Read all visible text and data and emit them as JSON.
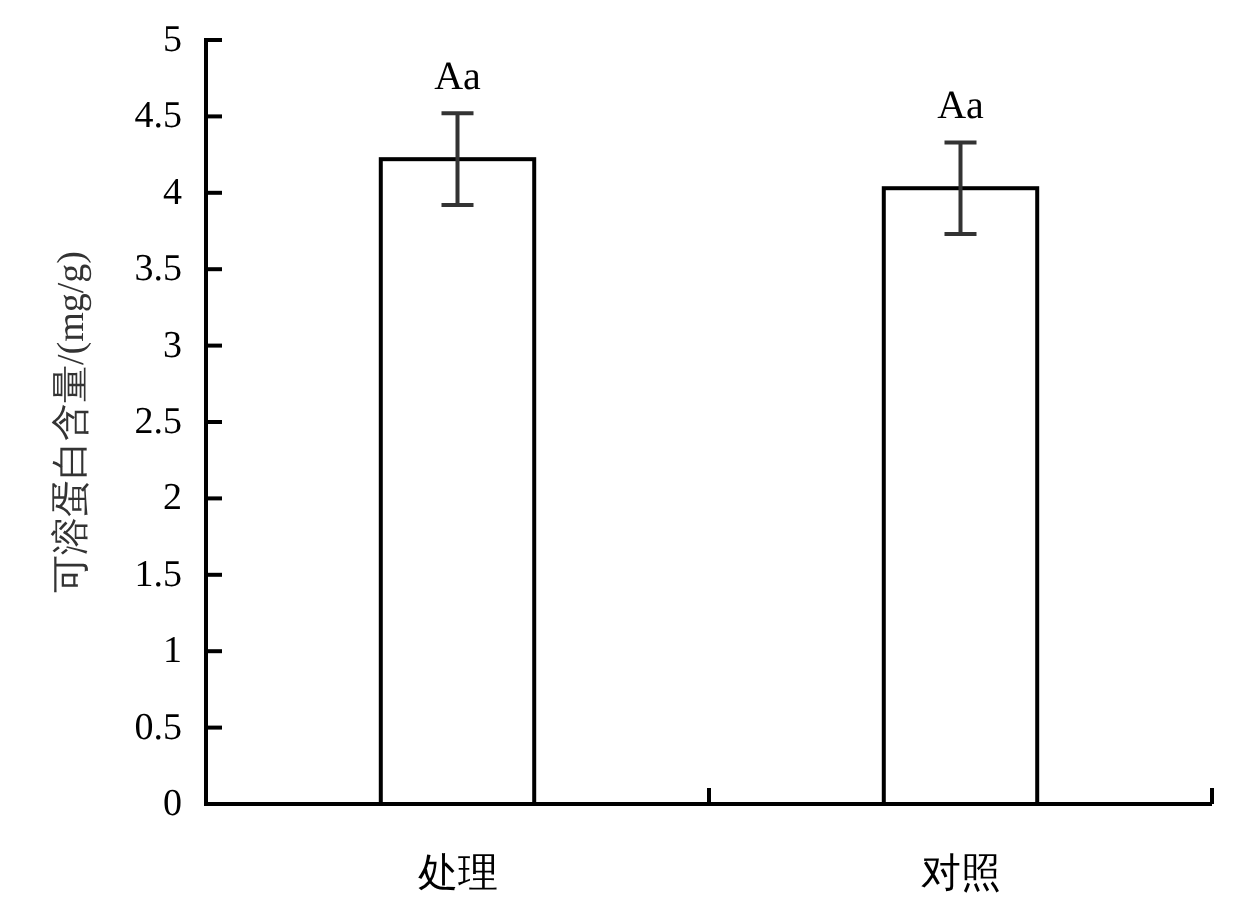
{
  "chart_data": {
    "type": "bar",
    "ylabel": "可溶蛋白含量/(mg/g)",
    "categories": [
      "处理",
      "对照"
    ],
    "values": [
      4.22,
      4.03
    ],
    "errors": [
      0.3,
      0.3
    ],
    "color": "#ffffff",
    "ylim": [
      0,
      5
    ],
    "yticks": [
      0,
      0.5,
      1,
      1.5,
      2,
      2.5,
      3,
      3.5,
      4,
      4.5,
      5
    ],
    "annotations": [
      {
        "text": "Aa",
        "x": "处理",
        "y": 4.52
      },
      {
        "text": "Aa",
        "x": "对照",
        "y": 4.33
      }
    ]
  }
}
